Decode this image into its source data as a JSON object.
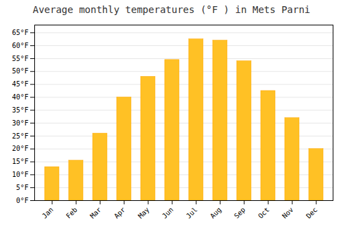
{
  "chart_data": {
    "type": "bar",
    "title": "Average monthly temperatures (°F ) in Mets Parni",
    "categories": [
      "Jan",
      "Feb",
      "Mar",
      "Apr",
      "May",
      "Jun",
      "Jul",
      "Aug",
      "Sep",
      "Oct",
      "Nov",
      "Dec"
    ],
    "values": [
      13,
      15.5,
      26,
      40,
      48,
      54.5,
      62.5,
      62,
      54,
      42.5,
      32,
      20
    ],
    "color": "#FFC125",
    "ylim": [
      0,
      68
    ],
    "yticks": [
      {
        "value": 0,
        "label": "0°F"
      },
      {
        "value": 5,
        "label": "5°F"
      },
      {
        "value": 10,
        "label": "10°F"
      },
      {
        "value": 15,
        "label": "15°F"
      },
      {
        "value": 20,
        "label": "20°F"
      },
      {
        "value": 25,
        "label": "25°F"
      },
      {
        "value": 30,
        "label": "30°F"
      },
      {
        "value": 35,
        "label": "35°F"
      },
      {
        "value": 40,
        "label": "40°F"
      },
      {
        "value": 45,
        "label": "45°F"
      },
      {
        "value": 50,
        "label": "50°F"
      },
      {
        "value": 55,
        "label": "55°F"
      },
      {
        "value": 60,
        "label": "60°F"
      },
      {
        "value": 65,
        "label": "65°F"
      }
    ],
    "grid": true
  }
}
